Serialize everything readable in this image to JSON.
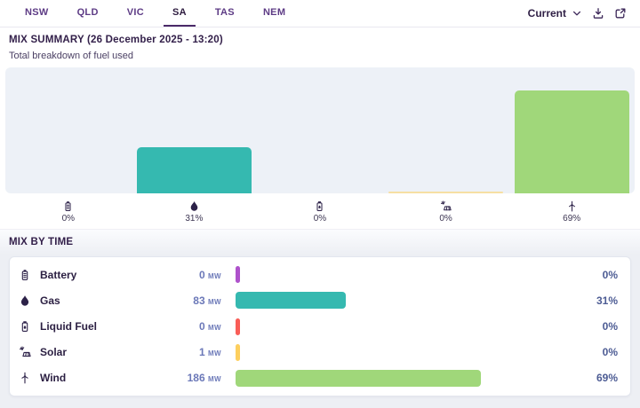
{
  "tab_bar": {
    "tabs": [
      {
        "label": "NSW",
        "active": false
      },
      {
        "label": "QLD",
        "active": false
      },
      {
        "label": "VIC",
        "active": false
      },
      {
        "label": "SA",
        "active": true
      },
      {
        "label": "TAS",
        "active": false
      },
      {
        "label": "NEM",
        "active": false
      }
    ],
    "period_selector": {
      "label": "Current",
      "icon": "chevron-down-icon"
    },
    "actions": [
      {
        "name": "download-button",
        "icon": "download-icon"
      },
      {
        "name": "expand-button",
        "icon": "expand-icon"
      }
    ]
  },
  "summary": {
    "title": "MIX SUMMARY (26 December 2025 - 13:20)",
    "subtitle": "Total breakdown of fuel used"
  },
  "chart_data": {
    "type": "bar",
    "title": "MIX SUMMARY (26 December 2025 - 13:20)",
    "subtitle": "Total breakdown of fuel used",
    "categories": [
      "Battery",
      "Gas",
      "Liquid Fuel",
      "Solar",
      "Wind"
    ],
    "values": [
      0,
      31,
      0,
      0,
      69
    ],
    "value_labels": [
      "0%",
      "31%",
      "0%",
      "0%",
      "69%"
    ],
    "values_mw": [
      0,
      83,
      0,
      1,
      186
    ],
    "unit": "%",
    "ylim": [
      0,
      100
    ],
    "grid": false,
    "legend_position": "below-bars-as-icons",
    "colors": [
      "#ae52cb",
      "#35b9b0",
      "#f95d57",
      "#fdcf5e",
      "#a0d77a"
    ],
    "icons": [
      "battery-icon",
      "flame-icon",
      "fuel-can-icon",
      "solar-panel-icon",
      "wind-turbine-icon"
    ]
  },
  "mix_by_time": {
    "title": "MIX BY TIME",
    "unit": "MW",
    "rows": [
      {
        "label": "Battery",
        "mw": "0",
        "percent_value": 0,
        "percent": "0%",
        "color": "#ae52cb",
        "icon": "battery-icon"
      },
      {
        "label": "Gas",
        "mw": "83",
        "percent_value": 31,
        "percent": "31%",
        "color": "#35b9b0",
        "icon": "flame-icon"
      },
      {
        "label": "Liquid Fuel",
        "mw": "0",
        "percent_value": 0,
        "percent": "0%",
        "color": "#f95d57",
        "icon": "fuel-can-icon"
      },
      {
        "label": "Solar",
        "mw": "1",
        "percent_value": 0,
        "percent": "0%",
        "color": "#fdcf5e",
        "icon": "solar-panel-icon"
      },
      {
        "label": "Wind",
        "mw": "186",
        "percent_value": 69,
        "percent": "69%",
        "color": "#a0d77a",
        "icon": "wind-turbine-icon"
      }
    ]
  },
  "theme": {
    "accent_purple": "#4b2a68",
    "text_dark": "#2b1f42",
    "value_blue": "#6b78b8",
    "chart_bg": "#edf1f7",
    "section_bg": "#edeff4"
  }
}
